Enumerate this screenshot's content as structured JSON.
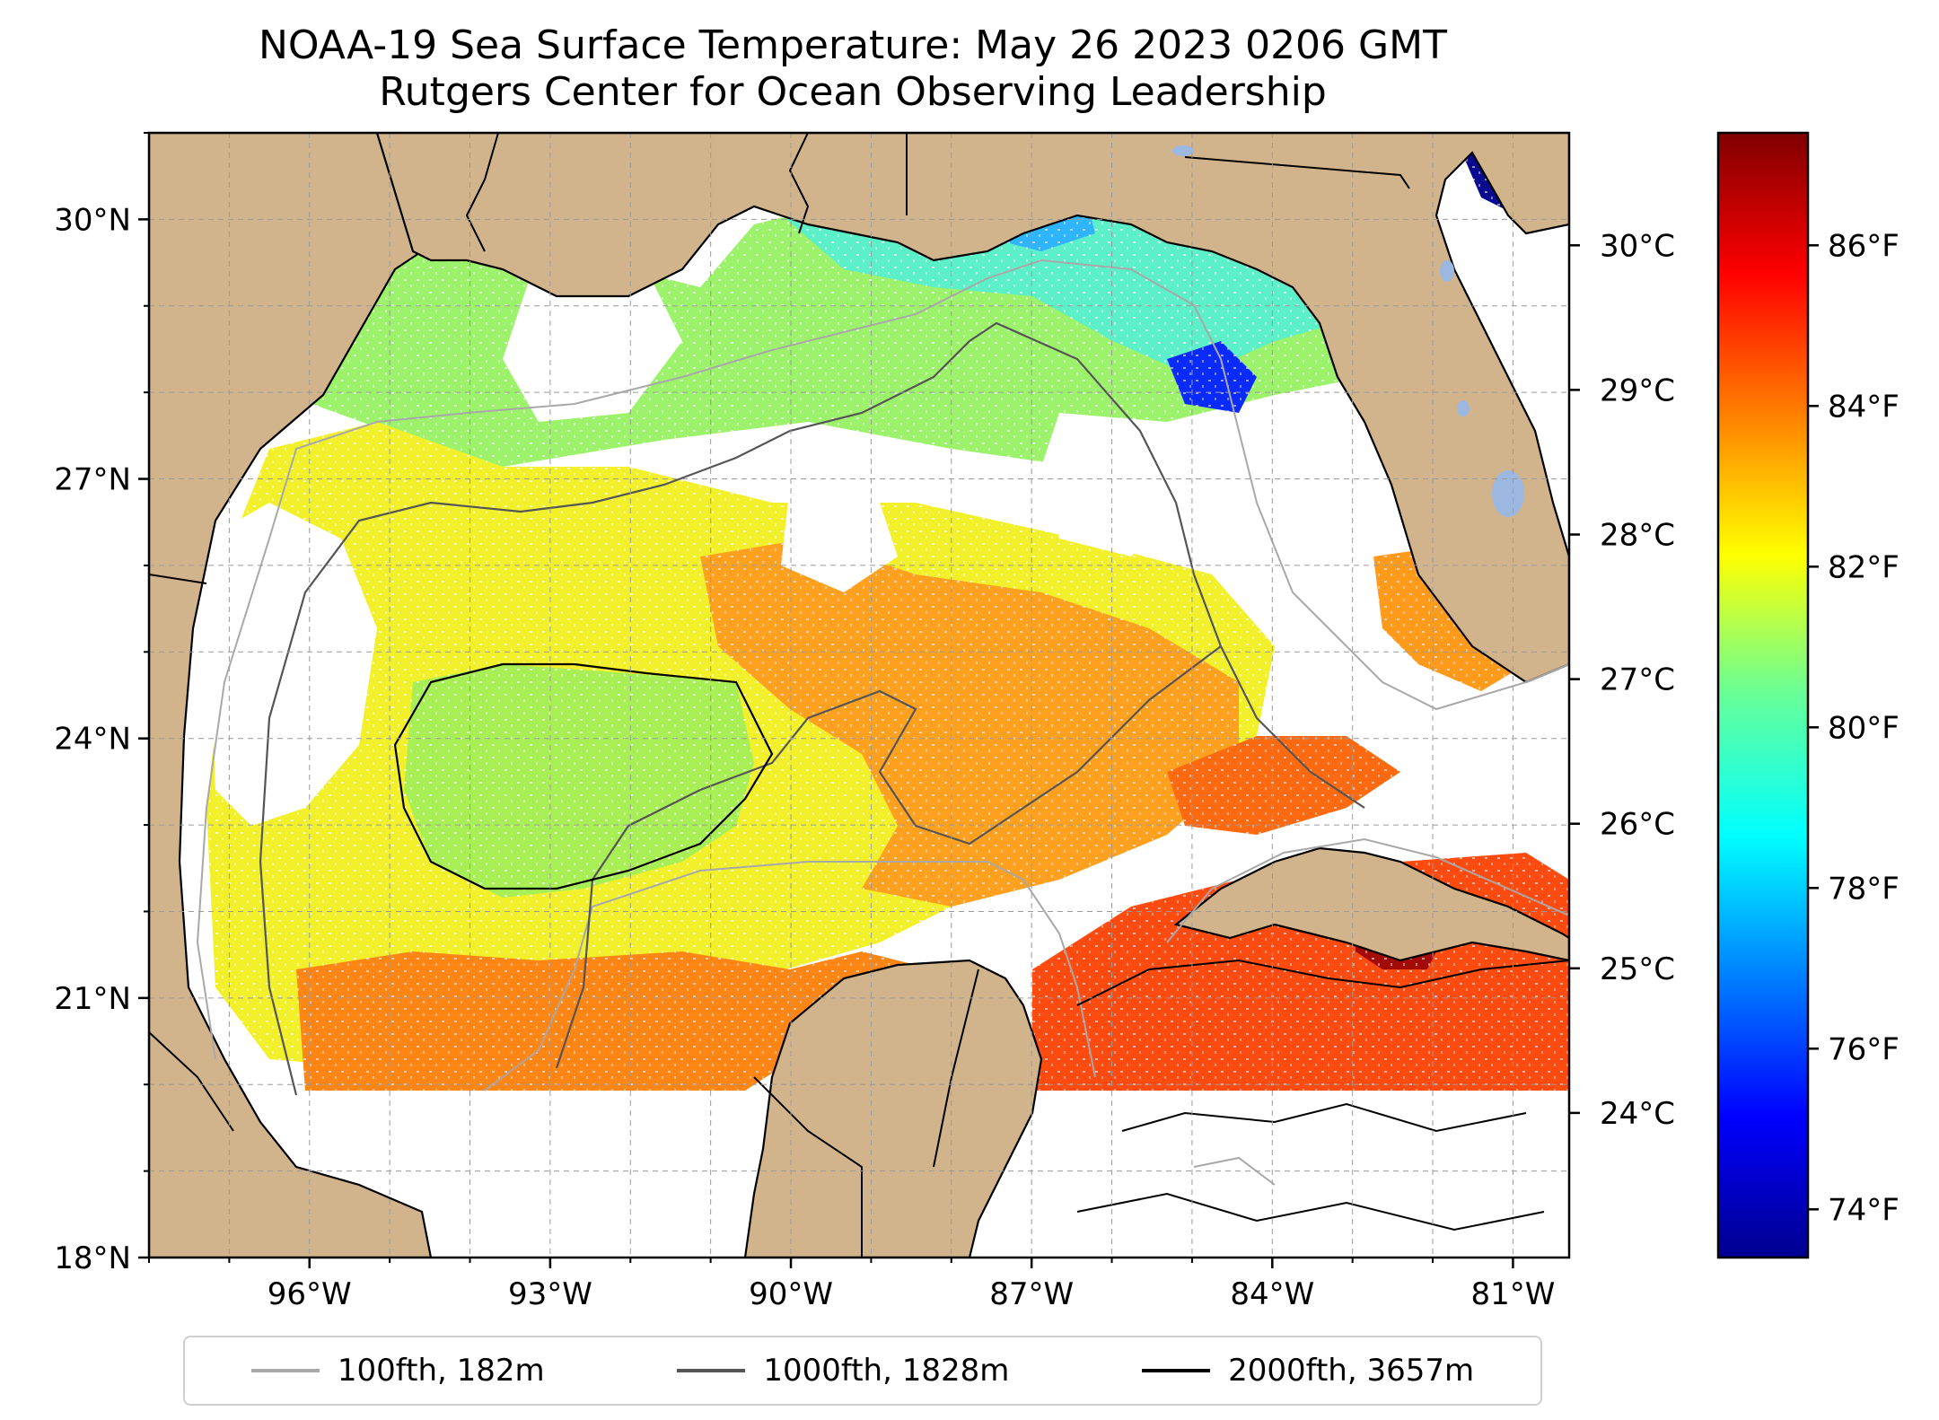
{
  "title": {
    "line1": "NOAA-19 Sea Surface Temperature: May 26 2023 0206 GMT",
    "line2": "Rutgers Center for Ocean Observing Leadership"
  },
  "map": {
    "lon_range": [
      -98.0,
      -80.3
    ],
    "lat_range": [
      18.0,
      31.0
    ],
    "lat_ticks": [
      {
        "label": "18°N",
        "value": 18
      },
      {
        "label": "21°N",
        "value": 21
      },
      {
        "label": "24°N",
        "value": 24
      },
      {
        "label": "27°N",
        "value": 27
      },
      {
        "label": "30°N",
        "value": 30
      }
    ],
    "lon_ticks": [
      {
        "label": "96°W",
        "value": -96
      },
      {
        "label": "93°W",
        "value": -93
      },
      {
        "label": "90°W",
        "value": -90
      },
      {
        "label": "87°W",
        "value": -87
      },
      {
        "label": "84°W",
        "value": -84
      },
      {
        "label": "81°W",
        "value": -81
      }
    ],
    "gridlines": true,
    "colors": {
      "land": "#d2b48c",
      "water_no_data": "#ffffff",
      "lakes": "#9db8e0"
    }
  },
  "colorbar": {
    "colormap": "jet",
    "f_range": [
      73.4,
      87.4
    ],
    "fahrenheit_ticks": [
      {
        "label": "74°F",
        "value": 74
      },
      {
        "label": "76°F",
        "value": 76
      },
      {
        "label": "78°F",
        "value": 78
      },
      {
        "label": "80°F",
        "value": 80
      },
      {
        "label": "82°F",
        "value": 82
      },
      {
        "label": "84°F",
        "value": 84
      },
      {
        "label": "86°F",
        "value": 86
      }
    ],
    "celsius_ticks": [
      {
        "label": "24°C",
        "value": 24
      },
      {
        "label": "25°C",
        "value": 25
      },
      {
        "label": "26°C",
        "value": 26
      },
      {
        "label": "27°C",
        "value": 27
      },
      {
        "label": "28°C",
        "value": 28
      },
      {
        "label": "29°C",
        "value": 29
      },
      {
        "label": "30°C",
        "value": 30
      }
    ]
  },
  "legend": [
    {
      "label": "100fth, 182m",
      "color": "#a8a8a8"
    },
    {
      "label": "1000fth, 1828m",
      "color": "#555555"
    },
    {
      "label": "2000fth, 3657m",
      "color": "#000000"
    }
  ]
}
